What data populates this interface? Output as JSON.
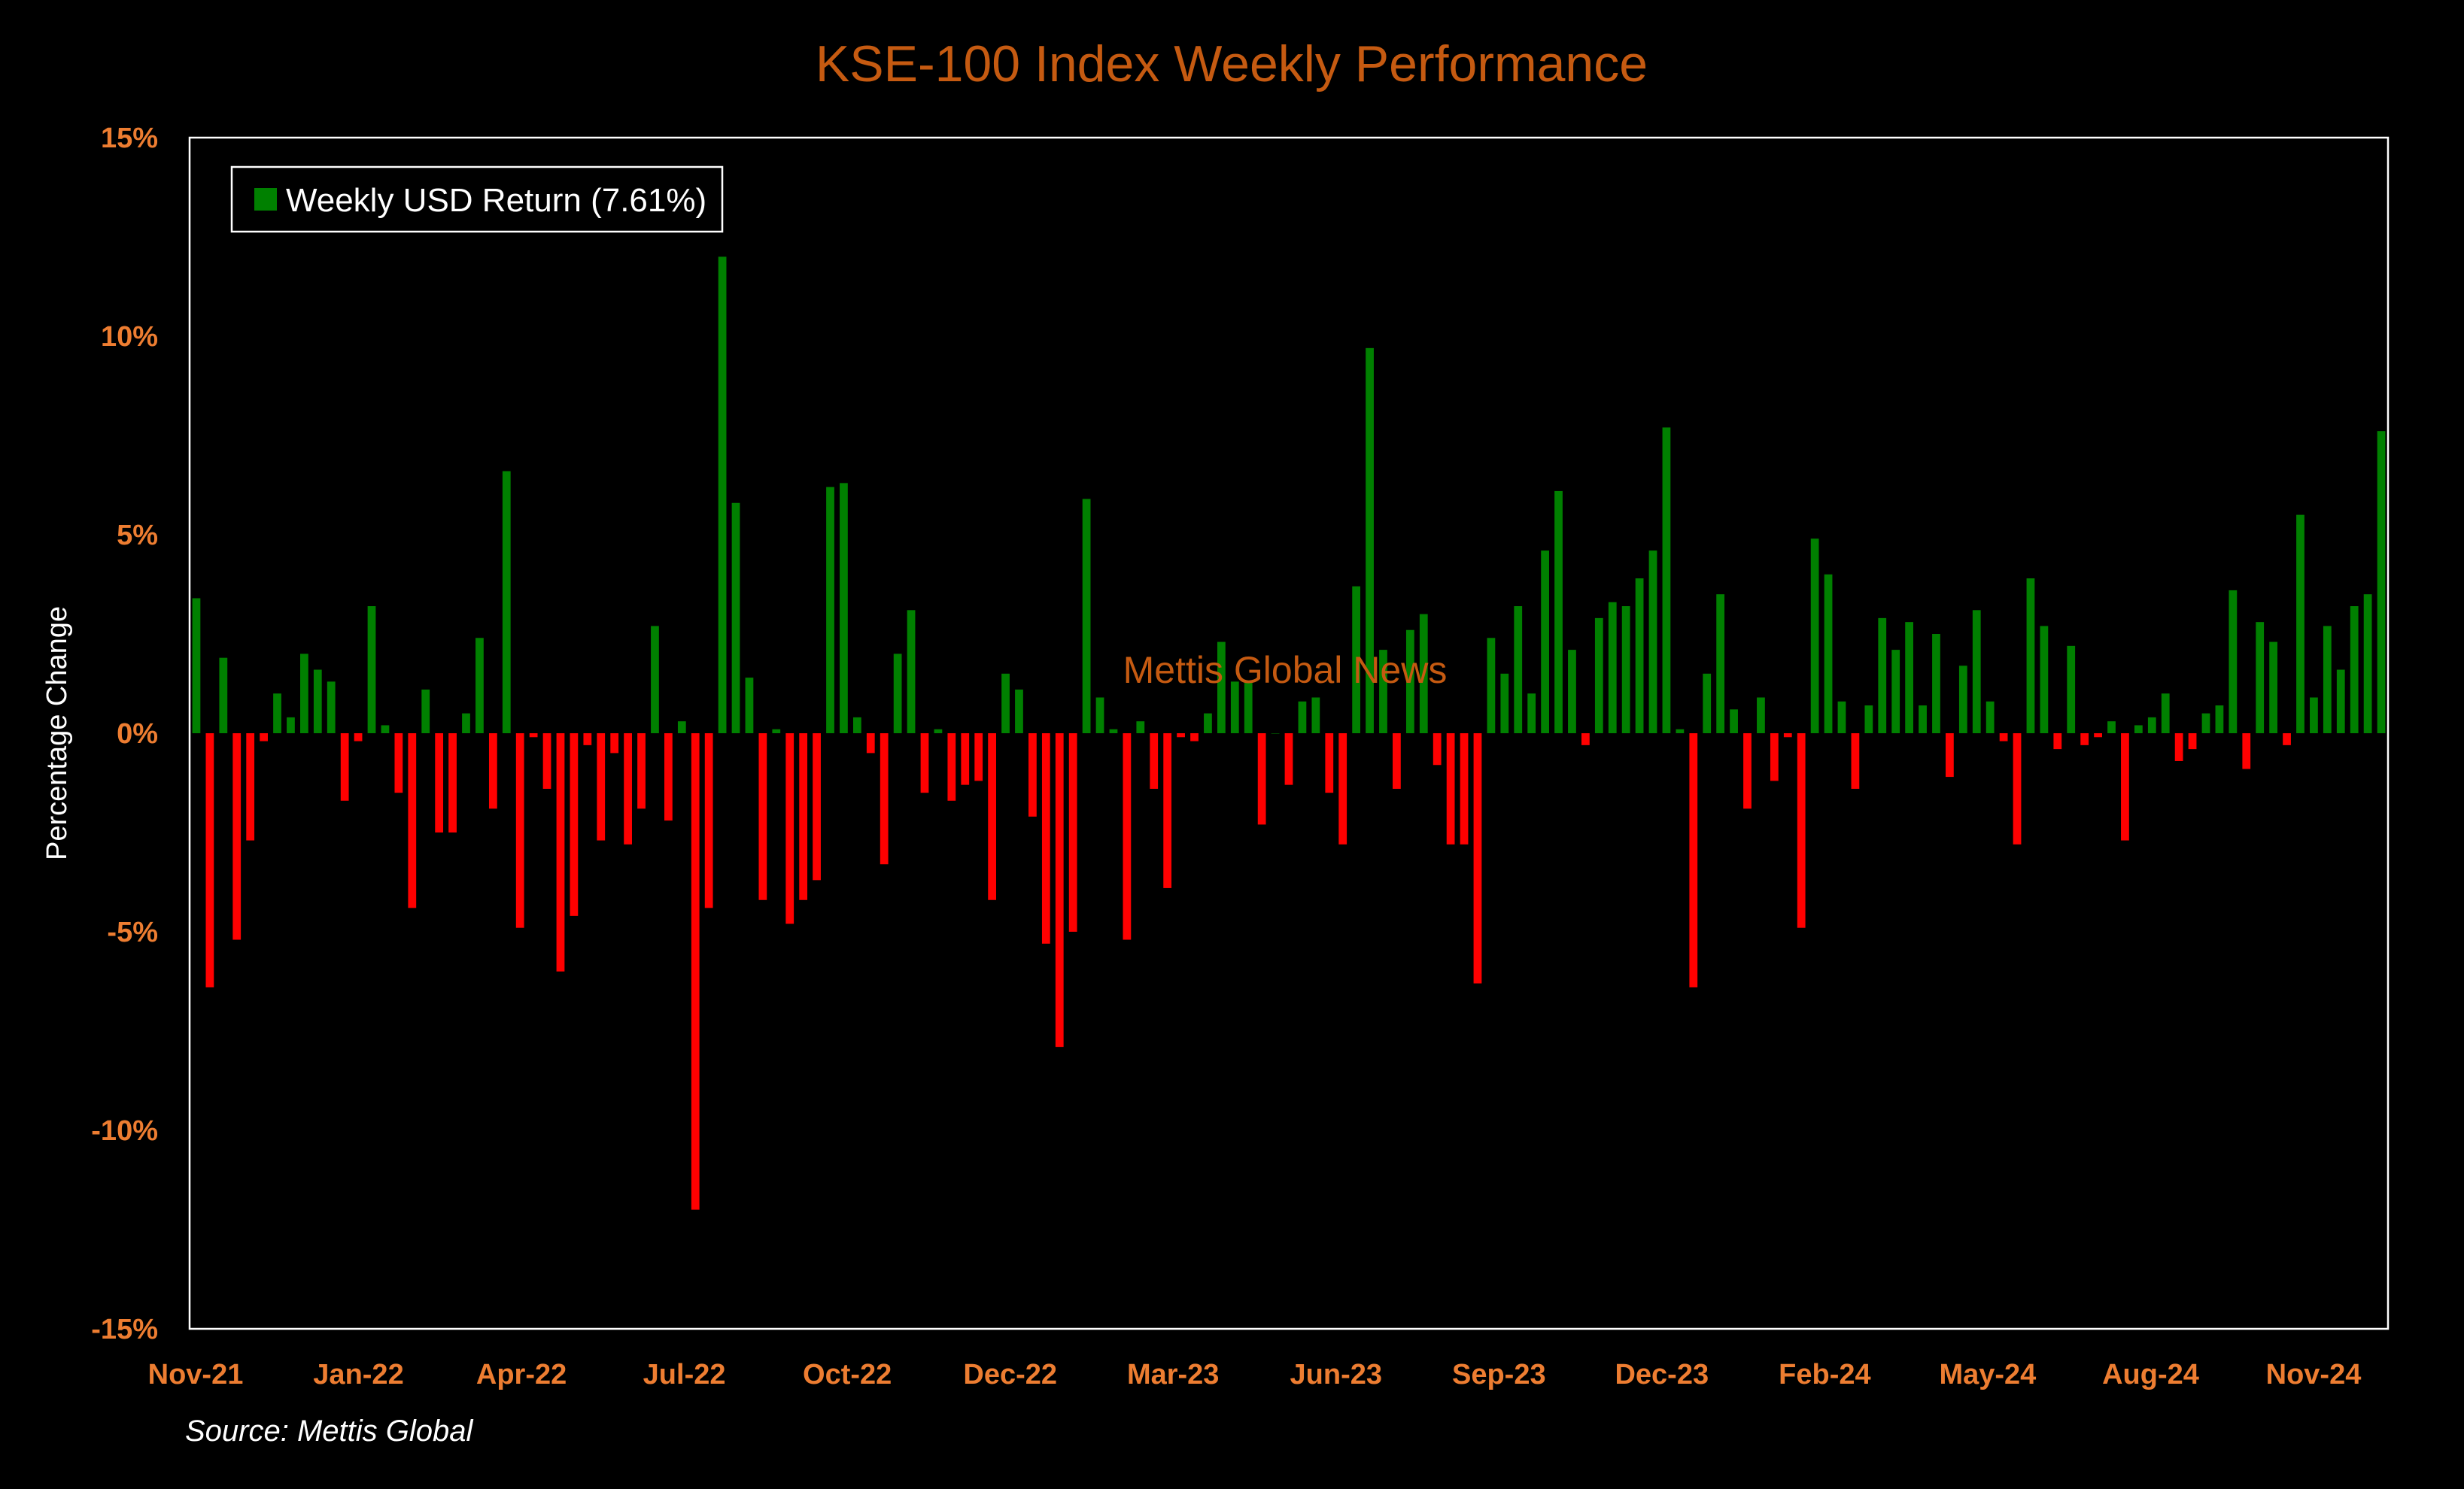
{
  "colors": {
    "background": "#000000",
    "positive": "#008000",
    "negative": "#ff0000",
    "title": "#c55a11",
    "ticks": "#ed7d31",
    "axis_text": "#ffffff",
    "watermark": "#c55a11"
  },
  "watermark": "Mettis Global News",
  "source": "Source: Mettis Global",
  "chart_data": {
    "type": "bar",
    "title": "KSE-100 Index Weekly Performance",
    "xlabel": "",
    "ylabel": "Percentage Change",
    "ylim": [
      -15,
      15
    ],
    "yticks": [
      15,
      10,
      5,
      0,
      -5,
      -10,
      -15
    ],
    "ytick_labels": [
      "15%",
      "10%",
      "5%",
      "0%",
      "-5%",
      "-10%",
      "-15%"
    ],
    "xtick_labels": [
      "Nov-21",
      "Jan-22",
      "Apr-22",
      "Jul-22",
      "Oct-22",
      "Dec-22",
      "Mar-23",
      "Jun-23",
      "Sep-23",
      "Dec-23",
      "Feb-24",
      "May-24",
      "Aug-24",
      "Nov-24"
    ],
    "grid": false,
    "legend": {
      "position": "top-left",
      "entries": [
        "Weekly USD Return (7.61%)"
      ]
    },
    "series": [
      {
        "name": "Weekly USD Return (7.61%)",
        "values": [
          3.4,
          -6.4,
          1.9,
          -5.2,
          -2.7,
          -0.2,
          1.0,
          0.4,
          2.0,
          1.6,
          1.3,
          -1.7,
          -0.2,
          3.2,
          0.2,
          -1.5,
          -4.4,
          1.1,
          -2.5,
          -2.5,
          0.5,
          2.4,
          -1.9,
          6.6,
          -4.9,
          -0.1,
          -1.4,
          -6.0,
          -4.6,
          -0.3,
          -2.7,
          -0.5,
          -2.8,
          -1.9,
          2.7,
          -2.2,
          0.3,
          -12.0,
          -4.4,
          12.0,
          5.8,
          1.4,
          -4.2,
          0.1,
          -4.8,
          -4.2,
          -3.7,
          6.2,
          6.3,
          0.4,
          -0.5,
          -3.3,
          2.0,
          3.1,
          -1.5,
          0.1,
          -1.7,
          -1.3,
          -1.2,
          -4.2,
          1.5,
          1.1,
          -2.1,
          -5.3,
          -7.9,
          -5.0,
          5.9,
          0.9,
          0.1,
          -5.2,
          0.3,
          -1.4,
          -3.9,
          -0.1,
          -0.2,
          0.5,
          2.3,
          1.3,
          1.3,
          -2.3,
          0.0,
          -1.3,
          0.8,
          0.9,
          -1.5,
          -2.8,
          3.7,
          9.7,
          2.1,
          -1.4,
          2.6,
          3.0,
          -0.8,
          -2.8,
          -2.8,
          -6.3,
          2.4,
          1.5,
          3.2,
          1.0,
          4.6,
          6.1,
          2.1,
          -0.3,
          2.9,
          3.3,
          3.2,
          3.9,
          4.6,
          7.7,
          0.1,
          -6.4,
          1.5,
          3.5,
          0.6,
          -1.9,
          0.9,
          -1.2,
          -0.1,
          -4.9,
          4.9,
          4.0,
          0.8,
          -1.4,
          0.7,
          2.9,
          2.1,
          2.8,
          0.7,
          2.5,
          -1.1,
          1.7,
          3.1,
          0.8,
          -0.2,
          -2.8,
          3.9,
          2.7,
          -0.4,
          2.2,
          -0.3,
          -0.1,
          0.3,
          -2.7,
          0.2,
          0.4,
          1.0,
          -0.7,
          -0.4,
          0.5,
          0.7,
          3.6,
          -0.9,
          2.8,
          2.3,
          -0.3,
          5.5,
          0.9,
          2.7,
          1.6,
          3.2,
          3.5,
          7.61
        ]
      }
    ]
  }
}
